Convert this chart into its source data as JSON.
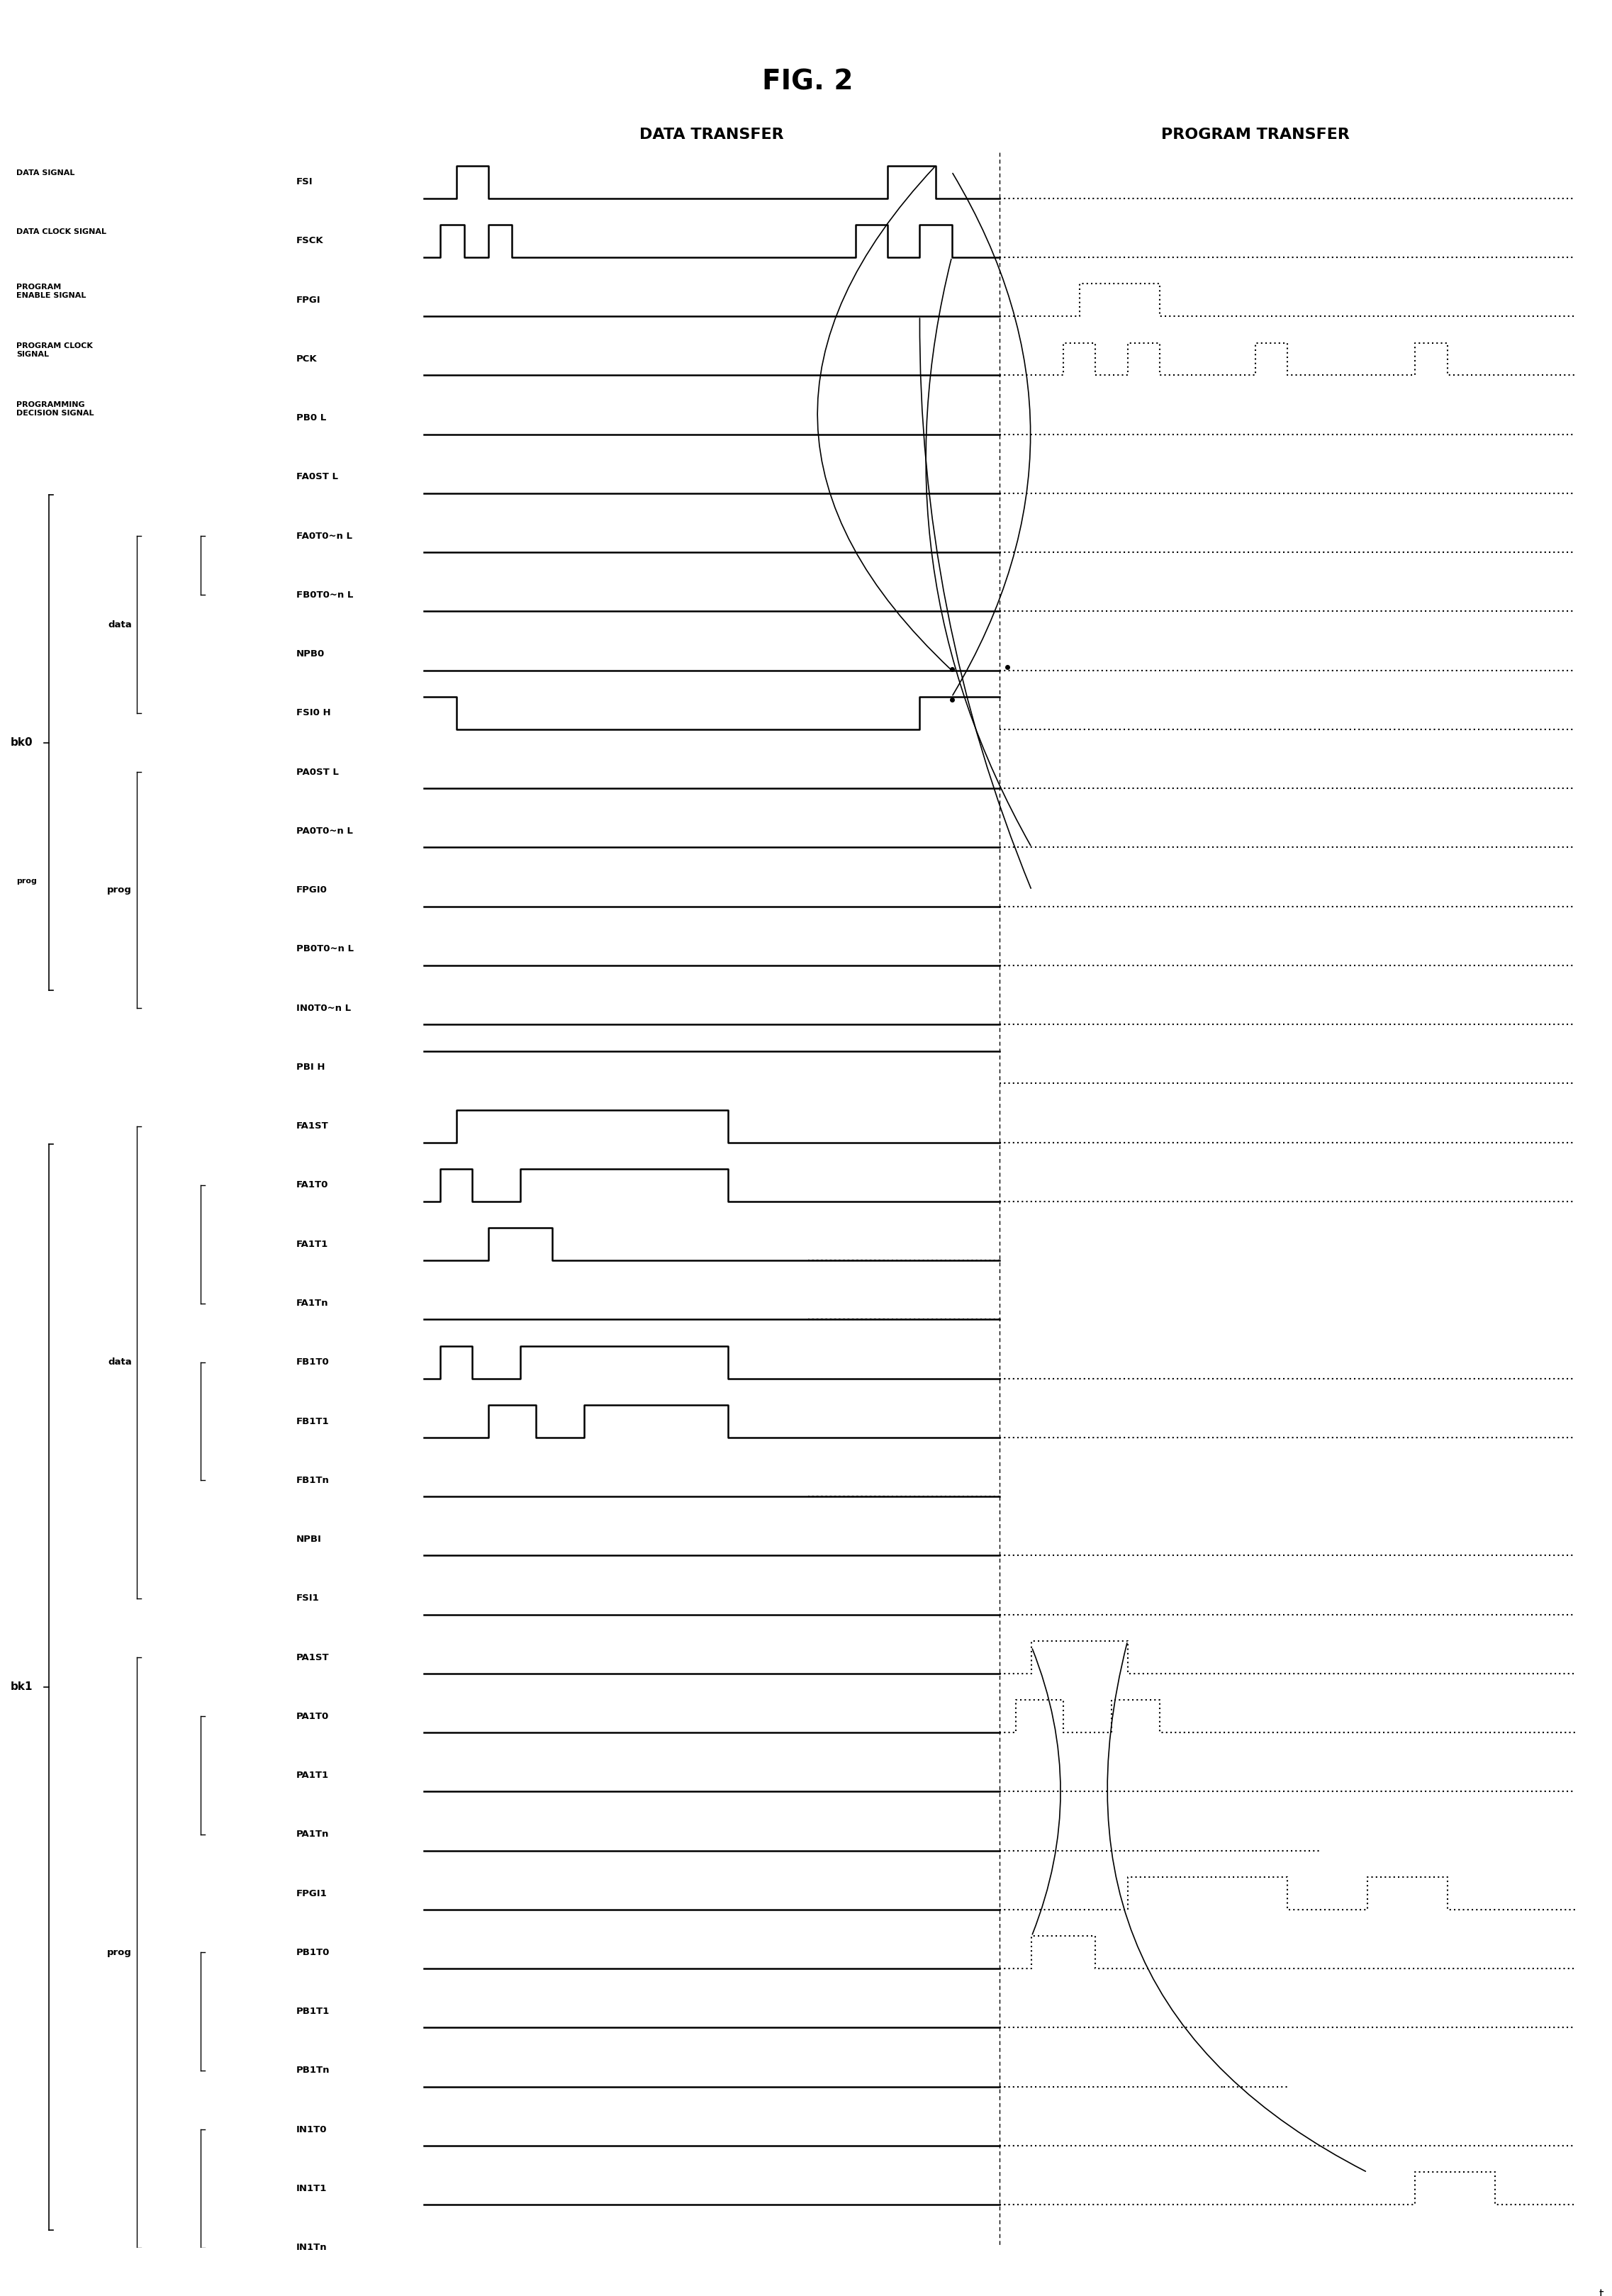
{
  "title": "FIG. 2",
  "header_left": "DATA TRANSFER",
  "header_right": "PROGRAM TRANSFER",
  "fig_width": 22.74,
  "fig_height": 32.39,
  "bg_color": "#ffffff",
  "signals": [
    {
      "label": "FSI",
      "label_left": "DATA SIGNAL",
      "row": 0,
      "type": "pulse_low_high_dotted"
    },
    {
      "label": "FSCK",
      "label_left": "DATA CLOCK SIGNAL",
      "row": 1,
      "type": "clock_dotted"
    },
    {
      "label": "FPGI",
      "label_left": "PROGRAM\nENABLE SIGNAL",
      "row": 2,
      "type": "low_pulse_dotted"
    },
    {
      "label": "PCK",
      "label_left": "PROGRAM CLOCK\nSIGNAL",
      "row": 3,
      "type": "clock2_dotted"
    },
    {
      "label": "PB0 L",
      "label_left": "PROGRAMMING\nDECISION SIGNAL",
      "row": 4,
      "type": "low_dotted"
    },
    {
      "label": "FA0ST L",
      "label_left": "",
      "row": 5,
      "type": "low_dotted"
    },
    {
      "label": "FA0T0~n L",
      "label_left": "",
      "row": 6,
      "type": "low_dotted",
      "brace_left": true
    },
    {
      "label": "FB0T0~n L",
      "label_left": "data",
      "row": 7,
      "type": "low_dotted",
      "brace_left": true
    },
    {
      "label": "NPB0",
      "label_left": "",
      "row": 8,
      "type": "low_dotted"
    },
    {
      "label": "FSI0 H",
      "label_left": "",
      "row": 9,
      "type": "high_low_dotted"
    },
    {
      "label": "PA0ST L",
      "label_left": "",
      "row": 10,
      "type": "low_dotted",
      "brace_left2": true
    },
    {
      "label": "PA0T0~n L",
      "label_left": "",
      "row": 11,
      "type": "low_dotted"
    },
    {
      "label": "FPGI0",
      "label_left": "prog",
      "row": 12,
      "type": "low_dotted"
    },
    {
      "label": "PB0T0~n L",
      "label_left": "",
      "row": 13,
      "type": "low_dotted",
      "brace_left": true
    },
    {
      "label": "IN0T0~n L",
      "label_left": "",
      "row": 14,
      "type": "low_dotted"
    },
    {
      "label": "PBI H",
      "label_left": "",
      "row": 15,
      "type": "high_dotted"
    },
    {
      "label": "FA1ST",
      "label_left": "",
      "row": 16,
      "type": "pulse_dotted"
    },
    {
      "label": "FA1T0",
      "label_left": "",
      "row": 17,
      "type": "pulse2_dotted",
      "brace_left": true
    },
    {
      "label": "FA1T1",
      "label_left": "",
      "row": 18,
      "type": "pulse3_dotted"
    },
    {
      "label": "FA1Tn",
      "label_left": "",
      "row": 19,
      "type": "low2_dotted"
    },
    {
      "label": "FB1T0",
      "label_left": "data",
      "row": 20,
      "type": "pulse4_dotted",
      "brace_left": true
    },
    {
      "label": "FB1T1",
      "label_left": "",
      "row": 21,
      "type": "pulse5_dotted"
    },
    {
      "label": "FB1Tn",
      "label_left": "",
      "row": 22,
      "type": "low3_dotted",
      "brace_left": true
    },
    {
      "label": "NPBI",
      "label_left": "",
      "row": 23,
      "type": "low_dotted"
    },
    {
      "label": "FSI1",
      "label_left": "",
      "row": 24,
      "type": "low_dotted"
    },
    {
      "label": "PA1ST",
      "label_left": "",
      "row": 25,
      "type": "low_prog_dotted"
    },
    {
      "label": "PA1T0",
      "label_left": "",
      "row": 26,
      "type": "low_dotted"
    },
    {
      "label": "PA1T1",
      "label_left": "prog",
      "row": 27,
      "type": "low_dotted",
      "brace_left": true
    },
    {
      "label": "PA1Tn",
      "label_left": "",
      "row": 28,
      "type": "low2b_dotted"
    },
    {
      "label": "FPGI1",
      "label_left": "",
      "row": 29,
      "type": "low_prog2_dotted"
    },
    {
      "label": "PB1T0",
      "label_left": "",
      "row": 30,
      "type": "low_prog3_dotted",
      "brace_left": true
    },
    {
      "label": "PB1T1",
      "label_left": "prog",
      "row": 31,
      "type": "low_prog4_dotted"
    },
    {
      "label": "PB1Tn",
      "label_left": "",
      "row": 32,
      "type": "low_prog5_dotted"
    },
    {
      "label": "IN1T0",
      "label_left": "",
      "row": 33,
      "type": "low_dotted",
      "brace_left": true
    },
    {
      "label": "IN1T1",
      "label_left": "",
      "row": 34,
      "type": "low_prog6_dotted"
    },
    {
      "label": "IN1Tn",
      "label_left": "",
      "row": 35,
      "type": "low3b_dotted"
    }
  ],
  "bk0_rows": [
    5,
    14
  ],
  "bk1_rows": [
    16,
    35
  ],
  "t_axis_row": 36
}
